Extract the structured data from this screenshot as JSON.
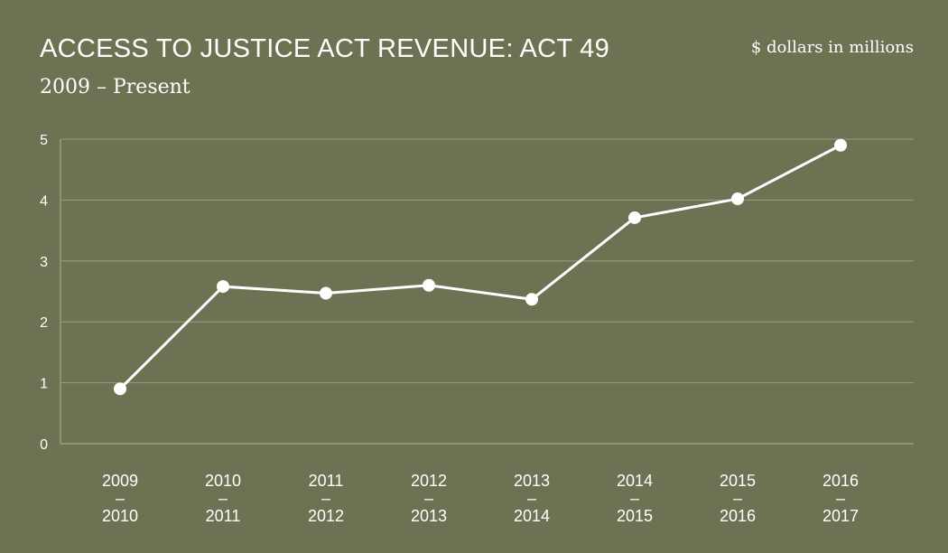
{
  "chart_data": {
    "type": "line",
    "title": "ACCESS TO JUSTICE ACT REVENUE: ACT 49",
    "subtitle": "2009 – Present",
    "units_label": "$ dollars in millions",
    "categories": [
      [
        "2009",
        "–",
        "2010"
      ],
      [
        "2010",
        "–",
        "2011"
      ],
      [
        "2011",
        "–",
        "2012"
      ],
      [
        "2012",
        "–",
        "2013"
      ],
      [
        "2013",
        "–",
        "2014"
      ],
      [
        "2014",
        "–",
        "2015"
      ],
      [
        "2015",
        "–",
        "2016"
      ],
      [
        "2016",
        "–",
        "2017"
      ]
    ],
    "values": [
      0.9,
      2.58,
      2.47,
      2.6,
      2.37,
      3.71,
      4.02,
      4.9
    ],
    "ylim": [
      0,
      5
    ],
    "yticks": [
      0,
      1,
      2,
      3,
      4,
      5
    ],
    "grid": true,
    "colors": {
      "background": "#6f7252",
      "line": "#ffffff",
      "grid": "#9a9c7e",
      "text": "#ffffff"
    }
  }
}
